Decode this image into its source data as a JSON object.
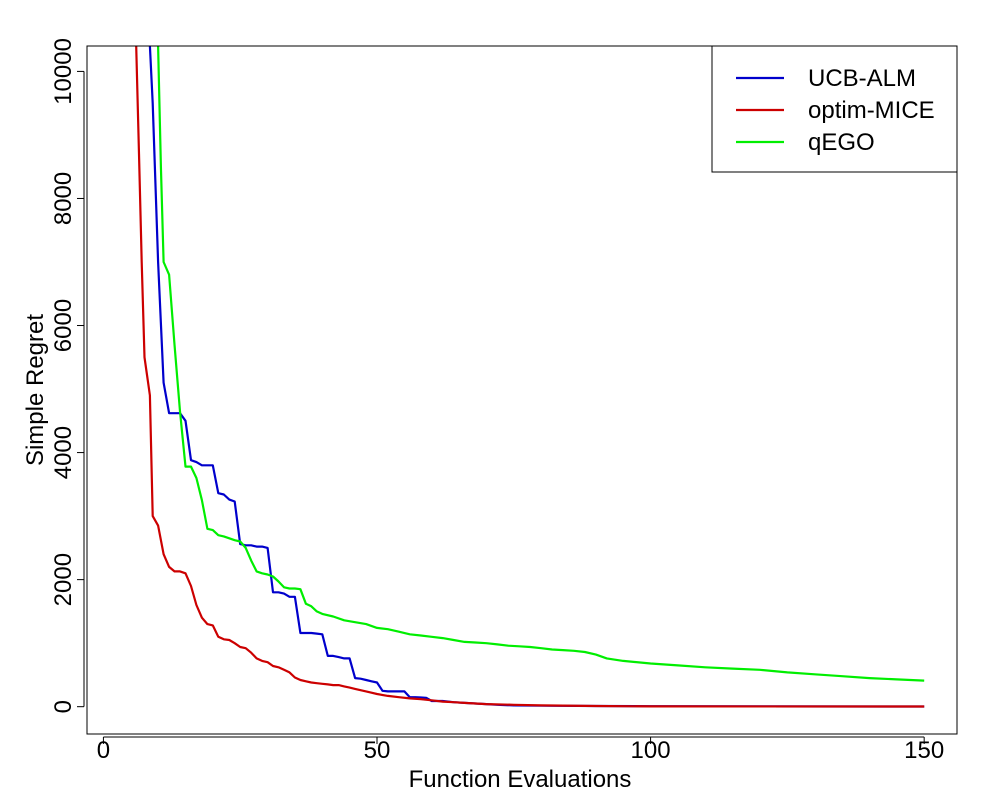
{
  "chart_data": {
    "type": "line",
    "title": "",
    "xlabel": "Function Evaluations",
    "ylabel": "Simple Regret",
    "xlim": [
      -3,
      156
    ],
    "ylim": [
      -430,
      10400
    ],
    "xticks": [
      0,
      50,
      100,
      150
    ],
    "yticks": [
      0,
      2000,
      4000,
      6000,
      8000,
      10000
    ],
    "legend_position": "top-right",
    "series": [
      {
        "name": "UCB-ALM",
        "color": "#0000cc",
        "x": [
          8.5,
          9,
          10,
          11,
          12,
          13,
          14,
          15,
          16,
          17,
          18,
          19,
          20,
          21,
          22,
          23,
          24,
          25,
          26,
          27,
          28,
          29,
          30,
          31,
          32,
          33,
          34,
          35,
          36,
          37,
          38,
          39,
          40,
          41,
          42,
          43,
          44,
          45,
          46,
          47,
          48,
          49,
          50,
          51,
          52,
          53,
          54,
          55,
          56,
          57,
          58,
          59,
          60,
          62,
          64,
          66,
          68,
          70,
          72,
          75,
          80,
          90,
          100,
          120,
          150
        ],
        "y": [
          10400,
          9500,
          7000,
          5100,
          4620,
          4620,
          4620,
          4500,
          3880,
          3850,
          3800,
          3800,
          3800,
          3360,
          3340,
          3260,
          3230,
          2560,
          2540,
          2540,
          2520,
          2520,
          2500,
          1800,
          1800,
          1780,
          1730,
          1730,
          1160,
          1160,
          1160,
          1150,
          1140,
          800,
          800,
          780,
          760,
          760,
          450,
          440,
          420,
          400,
          380,
          250,
          240,
          240,
          240,
          240,
          150,
          150,
          145,
          140,
          90,
          90,
          70,
          60,
          50,
          40,
          30,
          20,
          15,
          10,
          8,
          5,
          3
        ]
      },
      {
        "name": "optim-MICE",
        "color": "#cc0000",
        "x": [
          6,
          6.5,
          7,
          7.5,
          8,
          8.5,
          9,
          10,
          11,
          12,
          13,
          14,
          15,
          16,
          17,
          18,
          19,
          20,
          21,
          22,
          23,
          24,
          25,
          26,
          27,
          28,
          29,
          30,
          31,
          32,
          33,
          34,
          35,
          36,
          37,
          38,
          39,
          40,
          41,
          42,
          43,
          44,
          45,
          46,
          47,
          48,
          49,
          50,
          52,
          54,
          56,
          58,
          60,
          62,
          64,
          66,
          68,
          70,
          75,
          80,
          90,
          100,
          150
        ],
        "y": [
          10400,
          8700,
          7000,
          5500,
          5200,
          4900,
          3000,
          2850,
          2400,
          2200,
          2130,
          2130,
          2100,
          1900,
          1600,
          1400,
          1300,
          1280,
          1100,
          1060,
          1050,
          1000,
          940,
          920,
          850,
          760,
          720,
          700,
          640,
          620,
          580,
          540,
          460,
          420,
          400,
          380,
          370,
          360,
          350,
          340,
          340,
          320,
          300,
          280,
          260,
          240,
          220,
          200,
          170,
          150,
          130,
          120,
          100,
          80,
          70,
          60,
          50,
          40,
          30,
          20,
          10,
          5,
          3
        ]
      },
      {
        "name": "qEGO",
        "color": "#00ee00",
        "x": [
          10,
          10.5,
          11,
          12,
          13,
          14,
          15,
          16,
          17,
          18,
          19,
          20,
          21,
          22,
          23,
          24,
          25,
          26,
          27,
          28,
          29,
          30,
          31,
          32,
          33,
          34,
          35,
          36,
          37,
          38,
          39,
          40,
          42,
          44,
          46,
          48,
          50,
          52,
          54,
          56,
          58,
          60,
          62,
          64,
          66,
          68,
          70,
          72,
          74,
          76,
          78,
          80,
          82,
          84,
          86,
          88,
          90,
          92,
          95,
          100,
          105,
          110,
          115,
          120,
          125,
          130,
          135,
          140,
          145,
          150
        ],
        "y": [
          10400,
          8500,
          7000,
          6800,
          5700,
          4650,
          3780,
          3780,
          3600,
          3250,
          2800,
          2780,
          2700,
          2680,
          2650,
          2620,
          2600,
          2500,
          2300,
          2130,
          2100,
          2080,
          2050,
          1970,
          1880,
          1860,
          1860,
          1850,
          1620,
          1580,
          1500,
          1460,
          1420,
          1360,
          1330,
          1300,
          1240,
          1220,
          1180,
          1140,
          1120,
          1100,
          1080,
          1050,
          1020,
          1010,
          1000,
          980,
          960,
          950,
          940,
          920,
          900,
          890,
          880,
          860,
          820,
          760,
          720,
          680,
          650,
          620,
          600,
          580,
          540,
          510,
          480,
          450,
          430,
          410
        ]
      }
    ]
  }
}
